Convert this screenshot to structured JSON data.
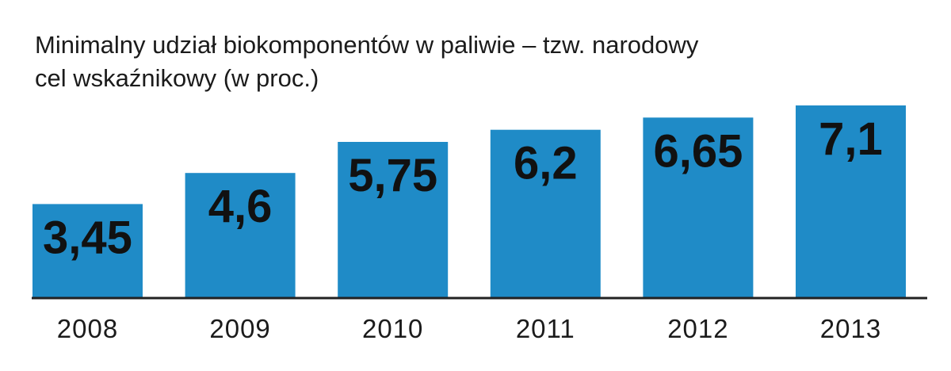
{
  "chart_data": {
    "type": "bar",
    "title_lines": [
      "Minimalny udział biokomponentów w paliwie – tzw. narodowy",
      "cel wskaźnikowy (w proc.)"
    ],
    "categories": [
      "2008",
      "2009",
      "2010",
      "2011",
      "2012",
      "2013"
    ],
    "values": [
      3.45,
      4.6,
      5.75,
      6.2,
      6.65,
      7.1
    ],
    "value_labels": [
      "3,45",
      "4,6",
      "5,75",
      "6,2",
      "6,65",
      "7,1"
    ],
    "xlabel": "",
    "ylabel": "",
    "ylim": [
      0,
      7.1
    ],
    "grid": false,
    "legend": "none",
    "bar_color": "#1f8bc7",
    "axis_color": "#222222"
  }
}
